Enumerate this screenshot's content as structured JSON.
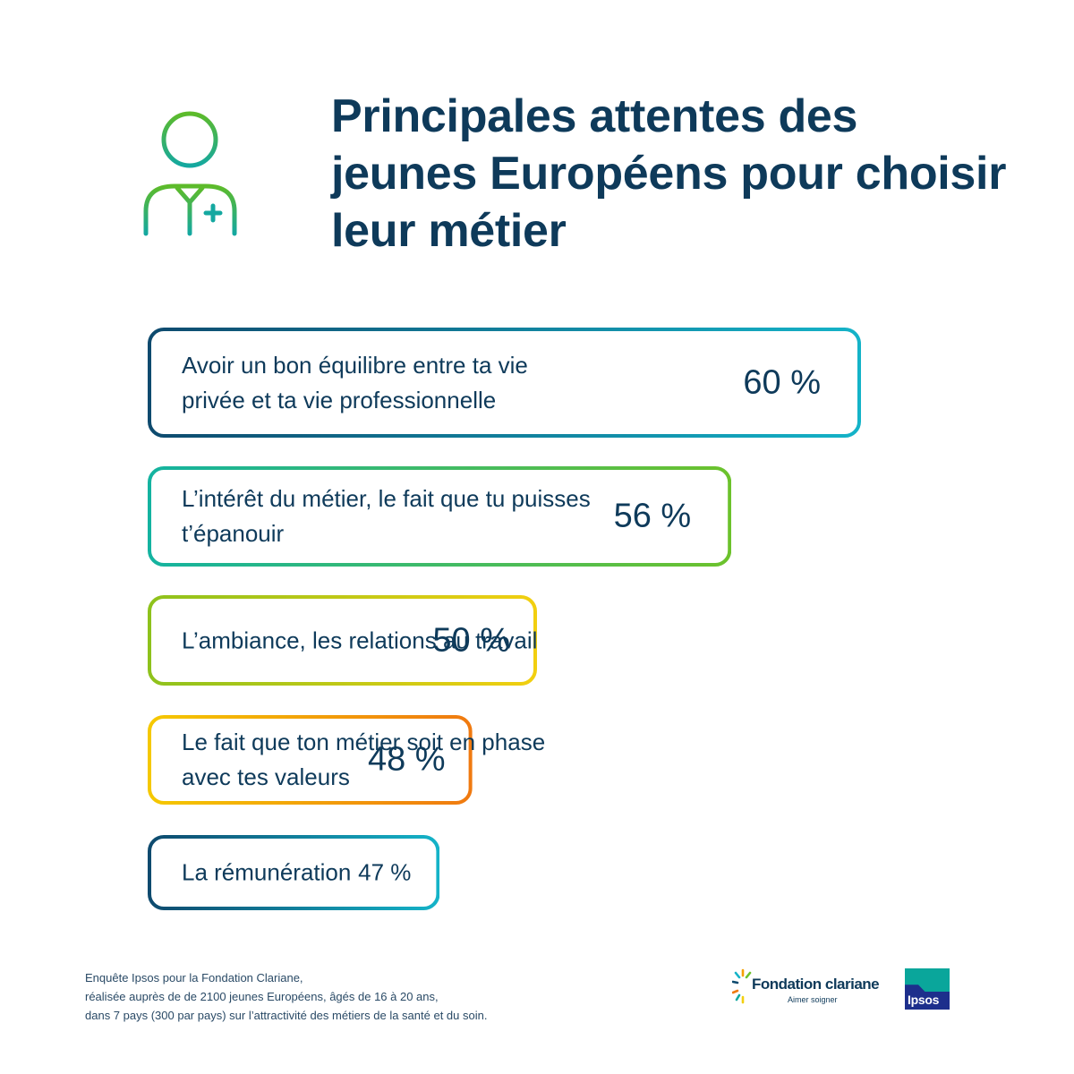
{
  "title": "Principales attentes des jeunes Européens pour choisir leur métier",
  "chart_data": {
    "type": "bar",
    "orientation": "horizontal",
    "title": "Principales attentes des jeunes Européens pour choisir leur métier",
    "unit": "%",
    "categories": [
      "Avoir un bon équilibre entre ta vie privée et ta vie professionnelle",
      "L’intérêt du métier, le fait que tu puisses t’épanouir",
      "L’ambiance, les relations au travail",
      "Le fait que ton métier soit en phase avec tes valeurs",
      "La rémunération"
    ],
    "values": [
      60,
      56,
      50,
      48,
      47
    ],
    "value_labels": [
      "60 %",
      "56 %",
      "50 %",
      "48 %",
      "47 %"
    ],
    "bar_gradients": [
      [
        "#0e4a6e",
        "#14b3c8"
      ],
      [
        "#14b3a0",
        "#6cc22c"
      ],
      [
        "#8ec21c",
        "#f2cf10"
      ],
      [
        "#f5c800",
        "#f07a10"
      ],
      [
        "#0e4a6e",
        "#14b3c8"
      ]
    ]
  },
  "footnote": {
    "lines": [
      "Enquête Ipsos pour la Fondation Clariane,",
      "réalisée auprès de de 2100 jeunes Européens, âgés de 16 à 20 ans,",
      "dans 7 pays (300 par pays) sur l’attractivité des métiers de la santé et du soin."
    ]
  },
  "logos": {
    "fondation_name": "Fondation clariane",
    "fondation_tagline": "Aimer soigner",
    "ipsos": "Ipsos"
  },
  "colors": {
    "navy": "#0e3a5a",
    "icon_green": "#5dbb2a",
    "icon_teal": "#14a8a0"
  }
}
